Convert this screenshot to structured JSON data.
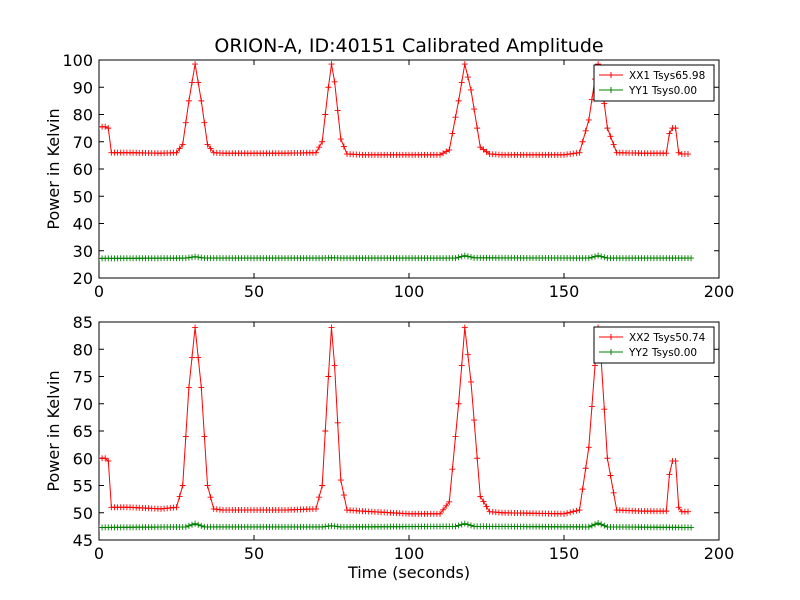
{
  "chart_data": [
    {
      "type": "line",
      "title": "ORION-A, ID:40151 Calibrated Amplitude",
      "xlabel": "",
      "ylabel": "Power in Kelvin",
      "xlim": [
        0,
        200
      ],
      "ylim": [
        20,
        100
      ],
      "xticks": [
        "0",
        "50",
        "100",
        "150",
        "200"
      ],
      "yticks": [
        "20",
        "30",
        "40",
        "50",
        "60",
        "70",
        "80",
        "90",
        "100"
      ],
      "legend_position": "top-right",
      "series": [
        {
          "name": "XX1 Tsys65.98",
          "color": "#ff0000",
          "x": [
            0,
            2,
            3,
            4,
            10,
            20,
            25,
            27,
            29,
            31,
            33,
            35,
            37,
            40,
            50,
            60,
            70,
            72,
            74,
            75,
            76,
            78,
            80,
            85,
            100,
            110,
            113,
            116,
            118,
            120,
            123,
            126,
            130,
            150,
            155,
            158,
            160,
            161,
            162,
            164,
            167,
            175,
            183,
            184,
            185,
            186,
            187,
            188,
            190
          ],
          "y": [
            75.5,
            75.5,
            75,
            66,
            66,
            65.8,
            66,
            69,
            85,
            98.5,
            85,
            69,
            66,
            65.8,
            65.8,
            65.8,
            66,
            70,
            90,
            98.5,
            92,
            71,
            65.5,
            65.2,
            65.2,
            65.2,
            67,
            85,
            98.5,
            89,
            68,
            65.5,
            65.2,
            65.2,
            66,
            78,
            93,
            98.5,
            93,
            75,
            66,
            65.8,
            65.8,
            73,
            75,
            75,
            66,
            65.5,
            65.5
          ]
        },
        {
          "name": "YY1 Tsys0.00",
          "color": "#008000",
          "x": [
            0,
            28,
            31,
            34,
            72,
            75,
            78,
            115,
            118,
            121,
            158,
            161,
            164,
            191
          ],
          "y": [
            27.2,
            27.3,
            27.8,
            27.3,
            27.3,
            27.4,
            27.3,
            27.3,
            28.2,
            27.4,
            27.3,
            28.2,
            27.3,
            27.3
          ]
        }
      ]
    },
    {
      "type": "line",
      "title": "",
      "xlabel": "Time (seconds)",
      "ylabel": "Power in Kelvin",
      "xlim": [
        0,
        200
      ],
      "ylim": [
        45,
        85
      ],
      "xticks": [
        "0",
        "50",
        "100",
        "150",
        "200"
      ],
      "yticks": [
        "45",
        "50",
        "55",
        "60",
        "65",
        "70",
        "75",
        "80",
        "85"
      ],
      "legend_position": "top-right",
      "series": [
        {
          "name": "XX2 Tsys50.74",
          "color": "#ff0000",
          "x": [
            0,
            2,
            3,
            4,
            10,
            20,
            25,
            27,
            29,
            31,
            33,
            35,
            37,
            40,
            50,
            60,
            70,
            72,
            74,
            75,
            76,
            78,
            80,
            85,
            100,
            110,
            113,
            116,
            118,
            120,
            123,
            126,
            130,
            150,
            155,
            158,
            160,
            161,
            162,
            164,
            167,
            175,
            183,
            184,
            185,
            186,
            187,
            188,
            190
          ],
          "y": [
            60,
            60,
            59.5,
            51,
            51,
            50.7,
            51,
            55,
            73,
            84,
            73,
            55,
            50.7,
            50.5,
            50.5,
            50.5,
            50.7,
            55,
            75,
            84,
            77,
            56,
            50.5,
            50.3,
            49.8,
            49.8,
            52,
            70,
            84,
            74,
            53,
            50.2,
            50,
            49.8,
            50.5,
            62,
            77,
            84,
            78,
            60,
            50.5,
            50.3,
            50.3,
            57,
            59.5,
            59.5,
            51,
            50.2,
            50.2
          ]
        },
        {
          "name": "YY2 Tsys0.00",
          "color": "#008000",
          "x": [
            0,
            28,
            31,
            34,
            72,
            75,
            78,
            115,
            118,
            121,
            158,
            161,
            164,
            191
          ],
          "y": [
            47.3,
            47.4,
            48,
            47.4,
            47.4,
            47.6,
            47.4,
            47.5,
            48,
            47.5,
            47.4,
            48.1,
            47.4,
            47.3
          ]
        }
      ]
    }
  ]
}
